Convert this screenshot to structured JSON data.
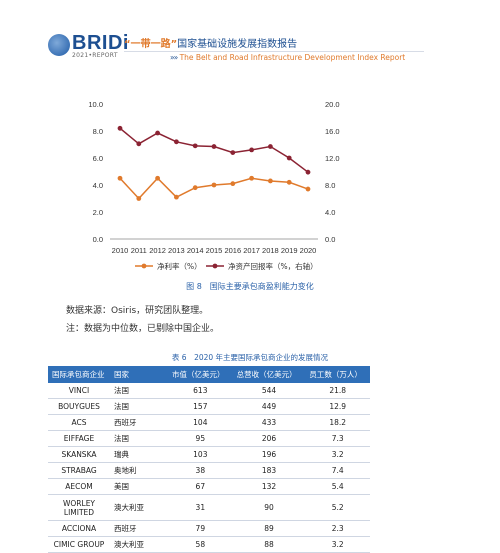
{
  "header": {
    "logo_text": "BRIDi",
    "logo_sub": "2021•REPORT",
    "title_cn_quoted": "“一带一路”",
    "title_cn_rest": "国家基础设施发展指数报告",
    "title_en_arrows": "»»",
    "title_en": "The Belt and Road Infrastructure Development Index Report"
  },
  "chart_data": {
    "type": "line",
    "x": [
      "2010",
      "2011",
      "2012",
      "2013",
      "2014",
      "2015",
      "2016",
      "2017",
      "2018",
      "2019",
      "2020"
    ],
    "y_left_ticks": [
      "10.0",
      "8.0",
      "6.0",
      "4.0",
      "2.0",
      "0.0"
    ],
    "y_right_ticks": [
      "20.0",
      "16.0",
      "12.0",
      "8.0",
      "4.0",
      "0.0"
    ],
    "ylim_left": [
      0,
      10
    ],
    "ylim_right": [
      0,
      20
    ],
    "series": [
      {
        "name": "净利率（%）",
        "axis": "left",
        "color": "#e07a2c",
        "values": [
          4.5,
          3.0,
          4.5,
          3.1,
          3.8,
          4.0,
          4.1,
          4.5,
          4.3,
          4.2,
          3.7
        ]
      },
      {
        "name": "净资产回报率（%，右轴）",
        "axis": "right",
        "color": "#8b2333",
        "values": [
          16.4,
          14.1,
          15.7,
          14.4,
          13.8,
          13.7,
          12.8,
          13.2,
          13.7,
          12.0,
          9.9
        ]
      }
    ],
    "legend": "bottom"
  },
  "caption_fig": "图 8　国际主要承包商盈利能力变化",
  "notes": {
    "source": "数据来源：Osiris，研究团队整理。",
    "remark": "注：数据为中位数，已剔除中国企业。"
  },
  "table": {
    "caption": "表 6　2020 年主要国际承包商企业的发展情况",
    "headers": [
      "国际承包商企业",
      "国家",
      "市值（亿美元）",
      "总营收（亿美元）",
      "员工数（万人）"
    ],
    "rows": [
      [
        "VINCI",
        "法国",
        "613",
        "544",
        "21.8"
      ],
      [
        "BOUYGUES",
        "法国",
        "157",
        "449",
        "12.9"
      ],
      [
        "ACS",
        "西班牙",
        "104",
        "433",
        "18.2"
      ],
      [
        "EIFFAGE",
        "法国",
        "95",
        "206",
        "7.3"
      ],
      [
        "SKANSKA",
        "瑞典",
        "103",
        "196",
        "3.2"
      ],
      [
        "STRABAG",
        "奥地利",
        "38",
        "183",
        "7.4"
      ],
      [
        "AECOM",
        "美国",
        "67",
        "132",
        "5.4"
      ],
      [
        "WORLEY LIMITED",
        "澳大利亚",
        "31",
        "90",
        "5.2"
      ],
      [
        "ACCIONA",
        "西班牙",
        "79",
        "89",
        "2.3"
      ],
      [
        "CIMIC GROUP",
        "澳大利亚",
        "58",
        "88",
        "3.2"
      ]
    ]
  }
}
